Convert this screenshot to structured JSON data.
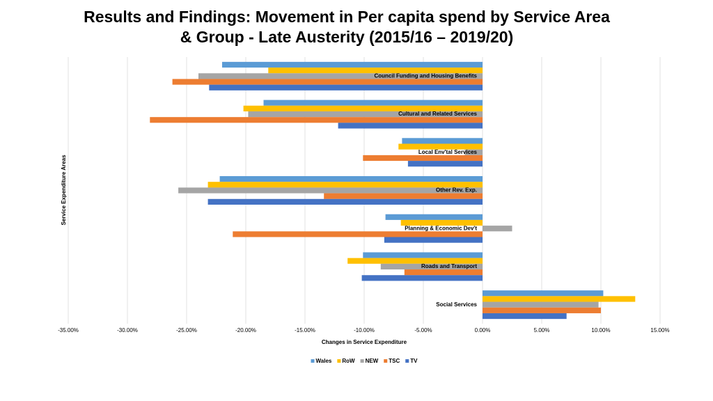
{
  "chart_data": {
    "type": "hbar",
    "title": [
      "Results and Findings: Movement in Per capita spend by Service Area",
      "& Group - Late Austerity (2015/16 – 2019/20)"
    ],
    "x_label": "Changes in Service Expenditure",
    "y_label": "Service Expenditure Areas",
    "categories": [
      "Council Funding and Housing Benefits",
      "Cultural and Related Services",
      "Local Env'tal Services",
      "Other Rev. Exp.",
      "Planning & Economic Dev't",
      "Roads and Transport",
      "Social Services"
    ],
    "series": [
      {
        "name": "Wales",
        "color": "#5b9bd5",
        "values": [
          -22.0,
          -18.5,
          -6.8,
          -22.2,
          -8.2,
          -10.1,
          10.2
        ]
      },
      {
        "name": "RoW",
        "color": "#ffc000",
        "values": [
          -18.1,
          -20.2,
          -7.1,
          -23.2,
          -6.9,
          -11.4,
          12.9
        ]
      },
      {
        "name": "NEW",
        "color": "#a5a5a5",
        "values": [
          -24.0,
          -19.8,
          -1.5,
          -25.7,
          2.5,
          -8.6,
          9.8
        ]
      },
      {
        "name": "TSC",
        "color": "#ed7d31",
        "values": [
          -26.2,
          -28.1,
          -10.1,
          -13.4,
          -21.1,
          -6.6,
          10.0
        ]
      },
      {
        "name": "TV",
        "color": "#4472c4",
        "values": [
          -23.1,
          -12.2,
          -6.3,
          -23.2,
          -8.3,
          -10.2,
          7.1
        ]
      }
    ],
    "xlim": [
      -35,
      15
    ],
    "xticks": [
      {
        "value": -35,
        "label": "-35.00%"
      },
      {
        "value": -30,
        "label": "-30.00%"
      },
      {
        "value": -25,
        "label": "-25.00%"
      },
      {
        "value": -20,
        "label": "-20.00%"
      },
      {
        "value": -15,
        "label": "-15.00%"
      },
      {
        "value": -10,
        "label": "-10.00%"
      },
      {
        "value": -5,
        "label": "-5.00%"
      },
      {
        "value": 0,
        "label": "0.00%"
      },
      {
        "value": 5,
        "label": "5.00%"
      },
      {
        "value": 10,
        "label": "10.00%"
      },
      {
        "value": 15,
        "label": "15.00%"
      }
    ],
    "grid": true,
    "legend": "bottom"
  }
}
